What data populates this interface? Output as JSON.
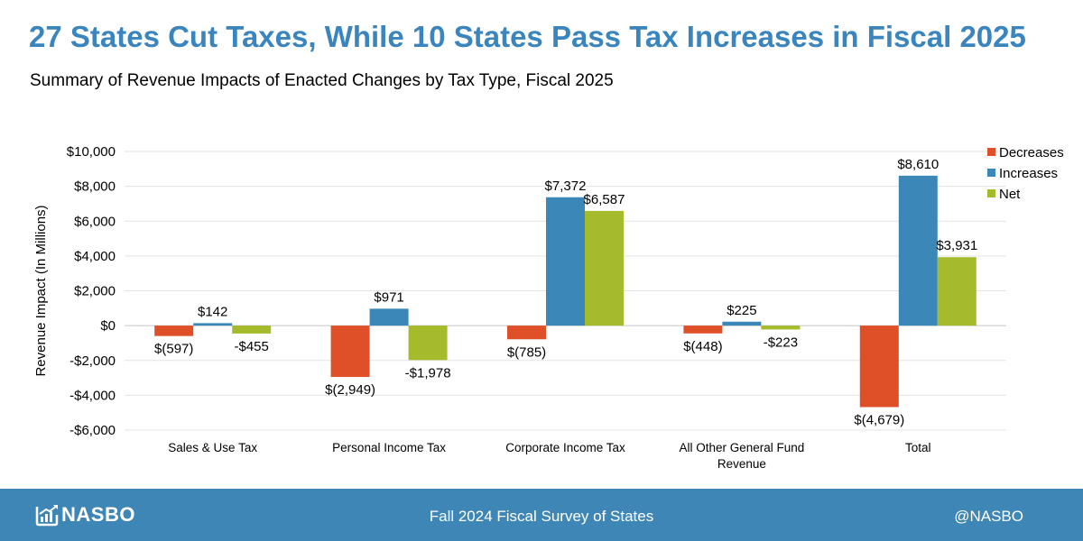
{
  "header": {
    "title": "27 States Cut Taxes, While 10 States Pass Tax Increases in Fiscal 2025",
    "subtitle": "Summary of Revenue Impacts of Enacted Changes by Tax Type, Fiscal 2025"
  },
  "chart_data": {
    "type": "bar",
    "ylabel": "Revenue Impact (In Millions)",
    "xlabel": "",
    "ylim": [
      -6000,
      10000
    ],
    "yticks": [
      10000,
      8000,
      6000,
      4000,
      2000,
      0,
      -2000,
      -4000,
      -6000
    ],
    "ytick_labels": [
      "$10,000",
      "$8,000",
      "$6,000",
      "$4,000",
      "$2,000",
      "$0",
      "-$2,000",
      "-$4,000",
      "-$6,000"
    ],
    "grid": true,
    "legend_position": "top-right",
    "categories": [
      "Sales & Use Tax",
      "Personal Income Tax",
      "Corporate Income Tax",
      "All Other General Fund Revenue",
      "Total"
    ],
    "category_label_lines": [
      [
        "Sales & Use Tax"
      ],
      [
        "Personal Income Tax"
      ],
      [
        "Corporate Income Tax"
      ],
      [
        "All Other General Fund",
        "Revenue"
      ],
      [
        "Total"
      ]
    ],
    "series": [
      {
        "name": "Decreases",
        "color": "#e05028",
        "values": [
          -597,
          -2949,
          -785,
          -448,
          -4679
        ],
        "labels": [
          "$(597)",
          "$(2,949)",
          "$(785)",
          "$(448)",
          "$(4,679)"
        ]
      },
      {
        "name": "Increases",
        "color": "#3b87b8",
        "values": [
          142,
          971,
          7372,
          225,
          8610
        ],
        "labels": [
          "$142",
          "$971",
          "$7,372",
          "$225",
          "$8,610"
        ]
      },
      {
        "name": "Net",
        "color": "#a6bb2c",
        "values": [
          -455,
          -1978,
          6587,
          -223,
          3931
        ],
        "labels": [
          "-$455",
          "-$1,978",
          "$6,587",
          "-$223",
          "$3,931"
        ]
      }
    ]
  },
  "footer": {
    "logo_text": "NASBO",
    "center_text": "Fall 2024 Fiscal Survey of States",
    "handle": "@NASBO"
  }
}
